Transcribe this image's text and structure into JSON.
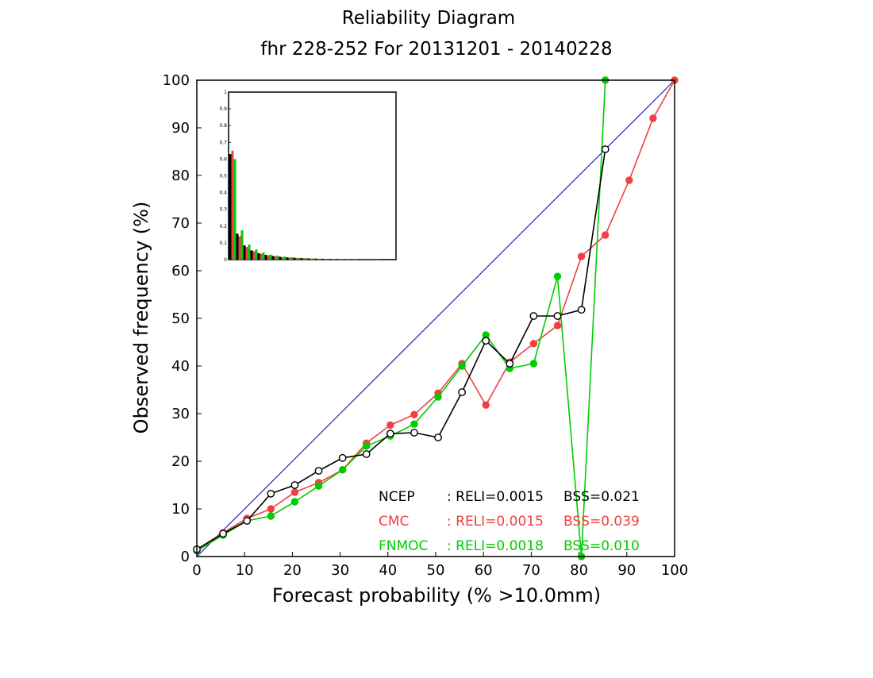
{
  "chart_data": {
    "type": "line",
    "title": "Reliability Diagram",
    "subtitle": "fhr 228-252 For 20131201 - 20140228",
    "xlabel": "Forecast probability (% >10.0mm)",
    "ylabel": "Observed frequency (%)",
    "xlim": [
      0,
      100
    ],
    "ylim": [
      0,
      100
    ],
    "x_ticks": [
      "0",
      "10",
      "20",
      "30",
      "40",
      "50",
      "60",
      "70",
      "80",
      "90",
      "100"
    ],
    "y_ticks": [
      "0",
      "10",
      "20",
      "30",
      "40",
      "50",
      "60",
      "70",
      "80",
      "90",
      "100"
    ],
    "diagonal": {
      "from": [
        0,
        0
      ],
      "to": [
        100,
        100
      ],
      "color": "#2020c0"
    },
    "series": [
      {
        "name": "NCEP",
        "color": "#000000",
        "marker": "open-circle",
        "x": [
          0,
          5.5,
          10.5,
          15.5,
          20.5,
          25.5,
          30.5,
          35.5,
          40.5,
          45.5,
          50.5,
          55.5,
          60.5,
          65.5,
          70.5,
          75.5,
          80.5,
          85.5
        ],
        "y": [
          1.5,
          4.8,
          7.5,
          13.2,
          15.0,
          18.0,
          20.7,
          21.5,
          25.8,
          26.0,
          25.0,
          34.5,
          45.3,
          40.5,
          50.5,
          50.5,
          51.8,
          85.5
        ]
      },
      {
        "name": "CMC",
        "color": "#f04040",
        "marker": "filled-circle",
        "x": [
          0,
          5.5,
          10.5,
          15.5,
          20.5,
          25.5,
          30.5,
          35.5,
          40.5,
          45.5,
          50.5,
          55.5,
          60.5,
          65.5,
          70.5,
          75.5,
          80.5,
          85.5,
          90.5,
          95.5,
          100
        ],
        "y": [
          1.5,
          5.0,
          8.0,
          10.0,
          13.5,
          15.5,
          18.2,
          23.8,
          27.6,
          29.8,
          34.3,
          40.5,
          31.8,
          40.8,
          44.7,
          48.5,
          63.0,
          67.5,
          79.0,
          92.0,
          100
        ]
      },
      {
        "name": "FNMOC",
        "color": "#00cc00",
        "marker": "filled-circle",
        "x": [
          0,
          5.5,
          10.5,
          15.5,
          20.5,
          25.5,
          30.5,
          35.5,
          40.5,
          45.5,
          50.5,
          55.5,
          60.5,
          65.5,
          70.5,
          75.5,
          80.5,
          85.5
        ],
        "y": [
          1.2,
          4.5,
          7.5,
          8.5,
          11.5,
          14.8,
          18.2,
          23.2,
          25.3,
          27.8,
          33.5,
          40.0,
          46.5,
          39.5,
          40.5,
          58.8,
          0.0,
          100
        ]
      }
    ],
    "legend": [
      {
        "name": "NCEP",
        "reli": ": RELI=0.0015",
        "bss": "BSS=0.021",
        "color": "#000000"
      },
      {
        "name": "CMC",
        "reli": ": RELI=0.0015",
        "bss": "BSS=0.039",
        "color": "#f04040"
      },
      {
        "name": "FNMOC",
        "reli": ": RELI=0.0018",
        "bss": "BSS=0.010",
        "color": "#00cc00"
      }
    ],
    "inset": {
      "type": "bar",
      "ylim": [
        0,
        1
      ],
      "y_ticks": [
        "0",
        "0.1",
        "0.2",
        "0.3",
        "0.4",
        "0.5",
        "0.6",
        "0.7",
        "0.8",
        "0.9",
        "1"
      ],
      "bins": 21,
      "series": [
        {
          "name": "NCEP",
          "color": "#000000",
          "values": [
            0.63,
            0.155,
            0.085,
            0.055,
            0.038,
            0.028,
            0.022,
            0.017,
            0.013,
            0.011,
            0.009,
            0.007,
            0.006,
            0.005,
            0.004,
            0.003,
            0.002,
            0.002,
            0.001,
            0.001,
            0.001
          ]
        },
        {
          "name": "CMC",
          "color": "#f04040",
          "values": [
            0.65,
            0.14,
            0.075,
            0.05,
            0.035,
            0.026,
            0.02,
            0.015,
            0.012,
            0.01,
            0.008,
            0.006,
            0.005,
            0.004,
            0.003,
            0.003,
            0.002,
            0.002,
            0.001,
            0.001,
            0.001
          ]
        },
        {
          "name": "FNMOC",
          "color": "#00cc00",
          "values": [
            0.6,
            0.175,
            0.09,
            0.06,
            0.042,
            0.03,
            0.024,
            0.018,
            0.014,
            0.011,
            0.009,
            0.007,
            0.006,
            0.005,
            0.004,
            0.003,
            0.002,
            0.002,
            0.001,
            0.001,
            0.001
          ]
        }
      ]
    }
  }
}
